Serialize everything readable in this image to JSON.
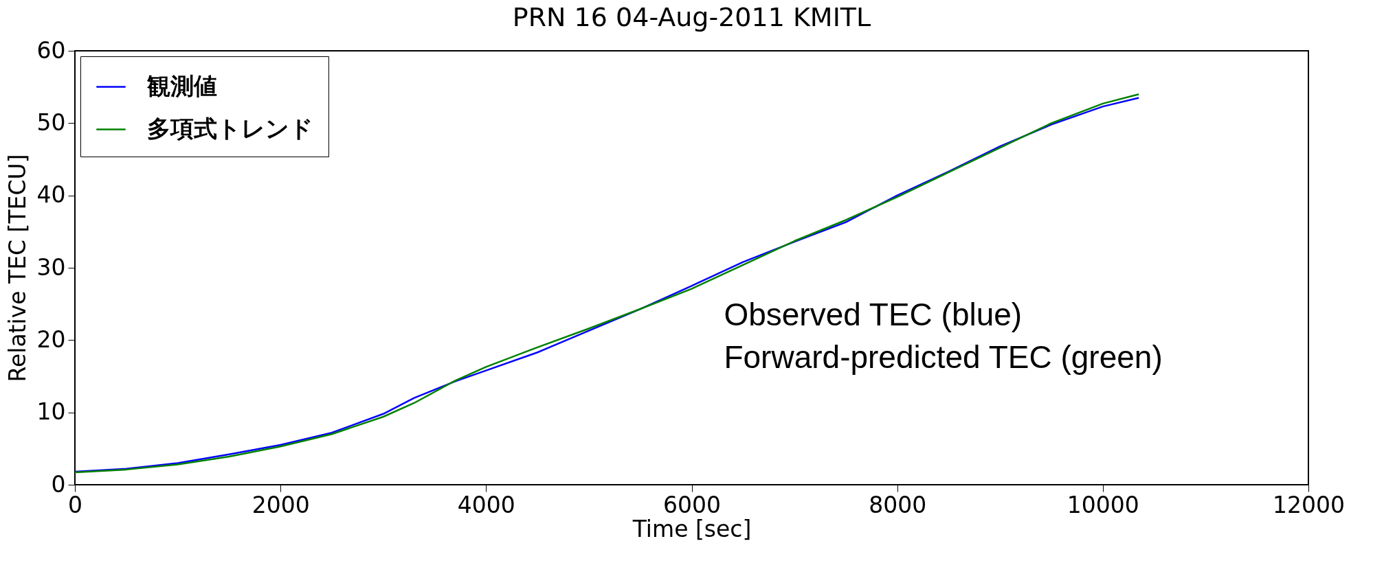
{
  "chart_data": {
    "type": "line",
    "title": "PRN 16 04-Aug-2011 KMITL",
    "xlabel": "Time [sec]",
    "ylabel": "Relative TEC [TECU]",
    "x": [
      0,
      500,
      1000,
      1500,
      2000,
      2500,
      3000,
      3300,
      3700,
      4000,
      4500,
      5000,
      5500,
      6000,
      6500,
      7000,
      7500,
      8000,
      8500,
      9000,
      9500,
      10000,
      10350
    ],
    "series": [
      {
        "name": "観測値",
        "color": "#0000ff",
        "values": [
          1.8,
          2.2,
          3.0,
          4.2,
          5.5,
          7.2,
          9.8,
          12.0,
          14.3,
          15.8,
          18.3,
          21.3,
          24.3,
          27.5,
          30.8,
          33.6,
          36.3,
          40.0,
          43.3,
          46.8,
          49.8,
          52.3,
          53.5
        ]
      },
      {
        "name": "多項式トレンド",
        "color": "#008000",
        "values": [
          1.7,
          2.1,
          2.8,
          3.9,
          5.3,
          7.0,
          9.4,
          11.3,
          14.4,
          16.3,
          19.0,
          21.6,
          24.3,
          27.1,
          30.4,
          33.7,
          36.6,
          39.8,
          43.2,
          46.6,
          50.0,
          52.7,
          54.0
        ]
      }
    ],
    "xlim": [
      0,
      12000
    ],
    "xticks": [
      0,
      2000,
      4000,
      6000,
      8000,
      10000,
      12000
    ],
    "ylim": [
      0,
      60
    ],
    "yticks": [
      0,
      10,
      20,
      30,
      40,
      50,
      60
    ],
    "grid": false,
    "legend": "top left",
    "line_style": "solid",
    "marker": "none",
    "annotations": [
      "Observed TEC (blue)",
      "Forward-predicted TEC (green)"
    ]
  }
}
